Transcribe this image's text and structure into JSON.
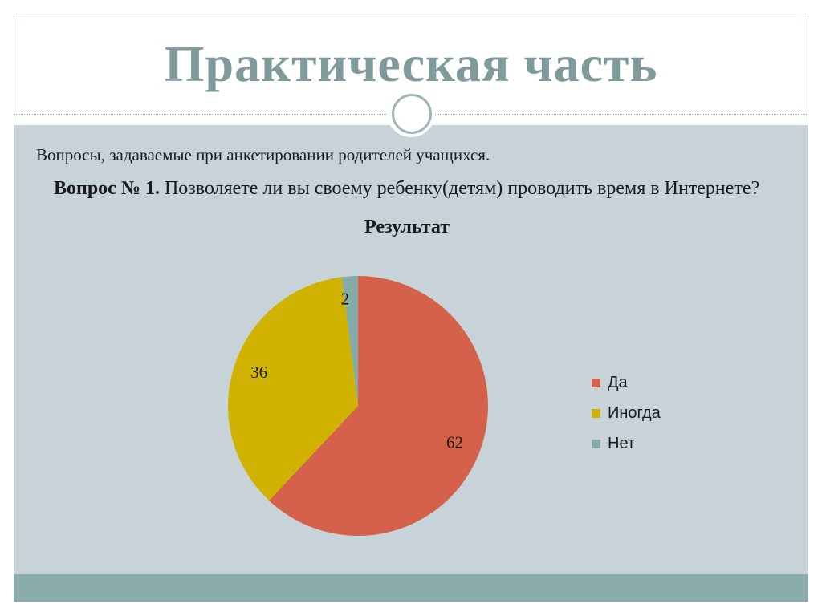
{
  "slide": {
    "title": "Практическая часть",
    "subtitle": "Вопросы, задаваемые при анкетировании родителей учащихся.",
    "question_label": "Вопрос № 1.",
    "question_text": " Позволяете ли вы своему ребенку(детям) проводить время в Интернете?"
  },
  "colors": {
    "title": "#7f9a9a",
    "content_background": "#c7d3d9",
    "footer_bar": "#8aacad"
  },
  "chart_data": {
    "type": "pie",
    "title": "Результат",
    "categories": [
      "Да",
      "Иногда",
      "Нет"
    ],
    "values": [
      62,
      36,
      2
    ],
    "colors": [
      "#d5614a",
      "#cfb300",
      "#86aaa8"
    ],
    "data_labels": [
      "62",
      "36",
      "2"
    ],
    "legend_placement": "right",
    "start_angle": "top, clockwise"
  }
}
